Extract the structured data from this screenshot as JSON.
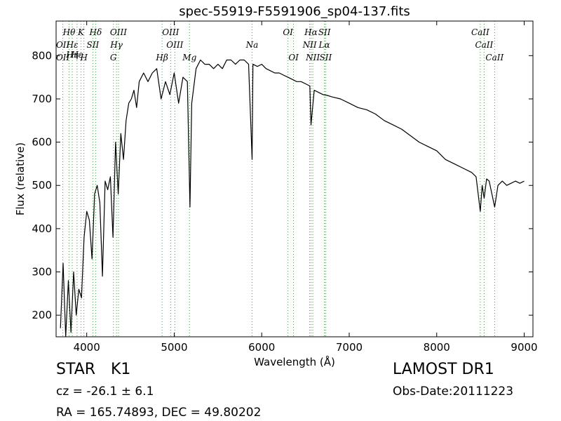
{
  "chart_data": {
    "type": "line",
    "title": "spec-55919-F5591906_sp04-137.fits",
    "xlabel": "Wavelength (Å)",
    "ylabel": "Flux (relative)",
    "xlim": [
      3650,
      9100
    ],
    "ylim": [
      150,
      880
    ],
    "x_ticks": [
      4000,
      5000,
      6000,
      7000,
      8000,
      9000
    ],
    "y_ticks": [
      200,
      300,
      400,
      500,
      600,
      700,
      800
    ],
    "grid": false,
    "line_color": "#000000",
    "marker_color": "#33aa33",
    "series": [
      {
        "x": [
          3700,
          3730,
          3760,
          3790,
          3820,
          3850,
          3880,
          3910,
          3940,
          3970,
          4000,
          4030,
          4060,
          4090,
          4120,
          4150,
          4180,
          4210,
          4240,
          4270,
          4300,
          4330,
          4360,
          4390,
          4420,
          4450,
          4480,
          4510,
          4540,
          4570,
          4600,
          4650,
          4700,
          4750,
          4800,
          4850,
          4900,
          4950,
          5000,
          5050,
          5100,
          5150,
          5180,
          5200,
          5250,
          5300,
          5350,
          5400,
          5450,
          5500,
          5550,
          5600,
          5650,
          5700,
          5750,
          5800,
          5850,
          5890,
          5900,
          5950,
          6000,
          6050,
          6100,
          6150,
          6200,
          6250,
          6300,
          6350,
          6400,
          6450,
          6500,
          6550,
          6563,
          6600,
          6650,
          6700,
          6750,
          6800,
          6900,
          7000,
          7100,
          7200,
          7300,
          7400,
          7500,
          7600,
          7700,
          7800,
          7900,
          8000,
          8100,
          8200,
          8300,
          8400,
          8450,
          8498,
          8520,
          8542,
          8570,
          8600,
          8662,
          8700,
          8750,
          8800,
          8850,
          8900,
          8950,
          9000
        ],
        "values": [
          170,
          320,
          150,
          280,
          160,
          300,
          200,
          260,
          240,
          380,
          440,
          420,
          330,
          480,
          500,
          460,
          290,
          510,
          490,
          520,
          380,
          600,
          480,
          620,
          560,
          650,
          690,
          700,
          720,
          680,
          740,
          760,
          740,
          760,
          770,
          700,
          740,
          710,
          760,
          690,
          750,
          740,
          450,
          690,
          770,
          790,
          780,
          780,
          770,
          780,
          770,
          790,
          790,
          780,
          790,
          790,
          780,
          560,
          780,
          775,
          780,
          770,
          765,
          760,
          760,
          755,
          750,
          745,
          740,
          740,
          735,
          730,
          640,
          720,
          715,
          710,
          708,
          705,
          700,
          690,
          680,
          675,
          665,
          650,
          640,
          630,
          615,
          600,
          590,
          580,
          560,
          550,
          540,
          530,
          520,
          440,
          500,
          470,
          515,
          510,
          450,
          500,
          510,
          500,
          505,
          510,
          505,
          510
        ]
      }
    ],
    "lines_upper": [
      {
        "label": "Hθ",
        "x": 3798
      },
      {
        "label": "K",
        "x": 3934
      },
      {
        "label": "Hδ",
        "x": 4102
      },
      {
        "label": "OIII",
        "x": 4363
      },
      {
        "label": "OIII",
        "x": 4959
      },
      {
        "label": "OI",
        "x": 6300
      },
      {
        "label": "Hα",
        "x": 6563
      },
      {
        "label": "SII",
        "x": 6717
      },
      {
        "label": "CaII",
        "x": 8498
      }
    ],
    "lines_middle": [
      {
        "label": "OII",
        "x": 3727
      },
      {
        "label": "Hε",
        "x": 3835
      },
      {
        "label": "SII",
        "x": 4070
      },
      {
        "label": "Hγ",
        "x": 4340
      },
      {
        "label": "OIII",
        "x": 5007
      },
      {
        "label": "Na",
        "x": 5890
      },
      {
        "label": "NII",
        "x": 6548
      },
      {
        "label": "Lα",
        "x": 6716
      },
      {
        "label": "CaII",
        "x": 8542
      }
    ],
    "lines_inner": [
      {
        "label": "Hη",
        "x": 3835
      },
      {
        "label": "Hε",
        "x": 3889
      }
    ],
    "lines_lower": [
      {
        "label": "OII",
        "x": 3727
      },
      {
        "label": "H",
        "x": 3968
      },
      {
        "label": "G",
        "x": 4305
      },
      {
        "label": "Hβ",
        "x": 4861
      },
      {
        "label": "Mg",
        "x": 5175
      },
      {
        "label": "OI",
        "x": 6364
      },
      {
        "label": "NII",
        "x": 6584
      },
      {
        "label": "SII",
        "x": 6731
      },
      {
        "label": "CaII",
        "x": 8662
      }
    ]
  },
  "info": {
    "object_class": "STAR",
    "subclass": "K1",
    "survey": "LAMOST DR1",
    "redshift": "cz = -26.1 ± 6.1",
    "obs_date": "Obs-Date:20111223",
    "coords": "RA = 165.74893, DEC = 49.80202"
  }
}
